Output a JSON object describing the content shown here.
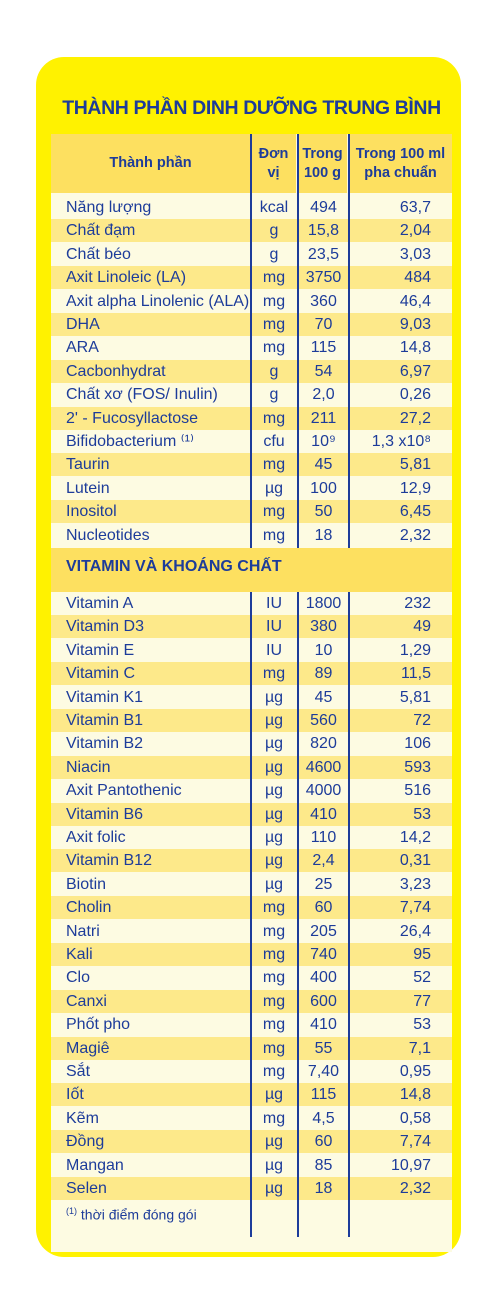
{
  "title": "THÀNH PHẦN DINH DƯỠNG TRUNG BÌNH",
  "header": {
    "col1": "Thành phần",
    "col2_l1": "Đơn",
    "col2_l2": "vị",
    "col3_l1": "Trong",
    "col3_l2": "100 g",
    "col4_l1": "Trong 100 ml",
    "col4_l2": "pha chuẩn"
  },
  "section_title": "VITAMIN VÀ KHOÁNG CHẤT",
  "nutrients": [
    {
      "name": "Năng lượng",
      "unit": "kcal",
      "per100g": "494",
      "per100ml": "63,7"
    },
    {
      "name": "Chất đạm",
      "unit": "g",
      "per100g": "15,8",
      "per100ml": "2,04"
    },
    {
      "name": "Chất béo",
      "unit": "g",
      "per100g": "23,5",
      "per100ml": "3,03"
    },
    {
      "name": "Axit Linoleic (LA)",
      "unit": "mg",
      "per100g": "3750",
      "per100ml": "484"
    },
    {
      "name": "Axit alpha Linolenic (ALA)",
      "unit": "mg",
      "per100g": "360",
      "per100ml": "46,4"
    },
    {
      "name": "DHA",
      "unit": "mg",
      "per100g": "70",
      "per100ml": "9,03"
    },
    {
      "name": "ARA",
      "unit": "mg",
      "per100g": "115",
      "per100ml": "14,8"
    },
    {
      "name": "Cacbonhydrat",
      "unit": "g",
      "per100g": "54",
      "per100ml": "6,97"
    },
    {
      "name": "Chất xơ (FOS/ Inulin)",
      "unit": "g",
      "per100g": "2,0",
      "per100ml": "0,26"
    },
    {
      "name": "2' - Fucosyllactose",
      "unit": "mg",
      "per100g": "211",
      "per100ml": "27,2"
    },
    {
      "name": "Bifidobacterium ⁽¹⁾",
      "unit": "cfu",
      "per100g": "10⁹",
      "per100ml": "1,3 x10⁸"
    },
    {
      "name": "Taurin",
      "unit": "mg",
      "per100g": "45",
      "per100ml": "5,81"
    },
    {
      "name": "Lutein",
      "unit": "µg",
      "per100g": "100",
      "per100ml": "12,9"
    },
    {
      "name": "Inositol",
      "unit": "mg",
      "per100g": "50",
      "per100ml": "6,45"
    },
    {
      "name": "Nucleotides",
      "unit": "mg",
      "per100g": "18",
      "per100ml": "2,32"
    }
  ],
  "vitamins": [
    {
      "name": "Vitamin A",
      "unit": "IU",
      "per100g": "1800",
      "per100ml": "232"
    },
    {
      "name": "Vitamin D3",
      "unit": "IU",
      "per100g": "380",
      "per100ml": "49"
    },
    {
      "name": "Vitamin E",
      "unit": "IU",
      "per100g": "10",
      "per100ml": "1,29"
    },
    {
      "name": "Vitamin C",
      "unit": "mg",
      "per100g": "89",
      "per100ml": "11,5"
    },
    {
      "name": "Vitamin K1",
      "unit": "µg",
      "per100g": "45",
      "per100ml": "5,81"
    },
    {
      "name": "Vitamin B1",
      "unit": "µg",
      "per100g": "560",
      "per100ml": "72"
    },
    {
      "name": "Vitamin B2",
      "unit": "µg",
      "per100g": "820",
      "per100ml": "106"
    },
    {
      "name": "Niacin",
      "unit": "µg",
      "per100g": "4600",
      "per100ml": "593"
    },
    {
      "name": "Axit Pantothenic",
      "unit": "µg",
      "per100g": "4000",
      "per100ml": "516"
    },
    {
      "name": "Vitamin B6",
      "unit": "µg",
      "per100g": "410",
      "per100ml": "53"
    },
    {
      "name": "Axit folic",
      "unit": "µg",
      "per100g": "110",
      "per100ml": "14,2"
    },
    {
      "name": "Vitamin B12",
      "unit": "µg",
      "per100g": "2,4",
      "per100ml": "0,31"
    },
    {
      "name": "Biotin",
      "unit": "µg",
      "per100g": "25",
      "per100ml": "3,23"
    },
    {
      "name": "Cholin",
      "unit": "mg",
      "per100g": "60",
      "per100ml": "7,74"
    },
    {
      "name": "Natri",
      "unit": "mg",
      "per100g": "205",
      "per100ml": "26,4"
    },
    {
      "name": "Kali",
      "unit": "mg",
      "per100g": "740",
      "per100ml": "95"
    },
    {
      "name": "Clo",
      "unit": "mg",
      "per100g": "400",
      "per100ml": "52"
    },
    {
      "name": "Canxi",
      "unit": "mg",
      "per100g": "600",
      "per100ml": "77"
    },
    {
      "name": "Phốt pho",
      "unit": "mg",
      "per100g": "410",
      "per100ml": "53"
    },
    {
      "name": "Magiê",
      "unit": "mg",
      "per100g": "55",
      "per100ml": "7,1"
    },
    {
      "name": "Sắt",
      "unit": "mg",
      "per100g": "7,40",
      "per100ml": "0,95"
    },
    {
      "name": "Iốt",
      "unit": "µg",
      "per100g": "115",
      "per100ml": "14,8"
    },
    {
      "name": "Kẽm",
      "unit": "mg",
      "per100g": "4,5",
      "per100ml": "0,58"
    },
    {
      "name": "Đồng",
      "unit": "µg",
      "per100g": "60",
      "per100ml": "7,74"
    },
    {
      "name": "Mangan",
      "unit": "µg",
      "per100g": "85",
      "per100ml": "10,97"
    },
    {
      "name": "Selen",
      "unit": "µg",
      "per100g": "18",
      "per100ml": "2,32"
    }
  ],
  "footnote_mark": "(1)",
  "footnote_text": "thời điểm đóng gói",
  "colors": {
    "frame": "#fff200",
    "header": "#fde060",
    "stripe": "#fde98a",
    "text": "#1d3c9a"
  }
}
